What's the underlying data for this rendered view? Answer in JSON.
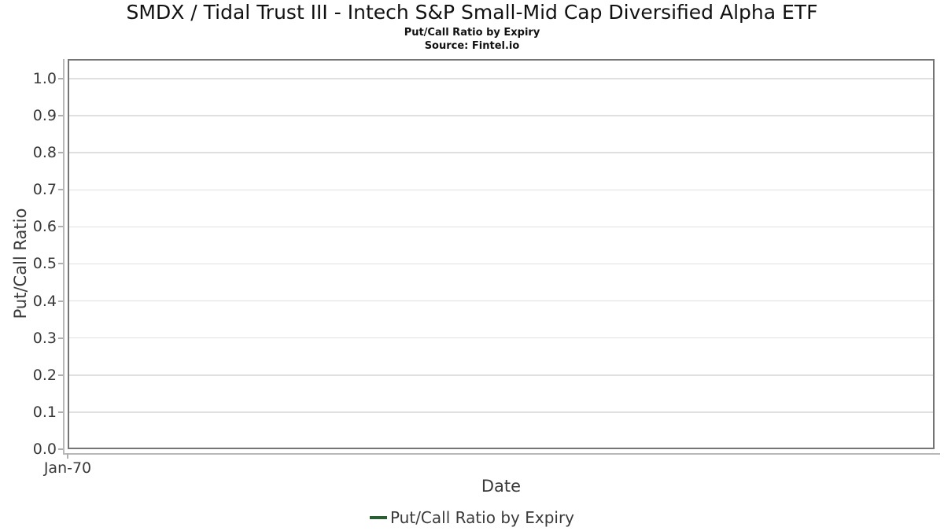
{
  "header": {
    "title": "SMDX / Tidal Trust III - Intech S&P Small-Mid Cap Diversified Alpha ETF",
    "subtitle": "Put/Call Ratio by Expiry",
    "source": "Source: Fintel.io"
  },
  "axes": {
    "x_label": "Date",
    "y_label": "Put/Call Ratio",
    "x_tick_labels": [
      "Jan-70"
    ],
    "y_tick_labels": [
      "0.0",
      "0.1",
      "0.2",
      "0.3",
      "0.4",
      "0.5",
      "0.6",
      "0.7",
      "0.8",
      "0.9",
      "1.0"
    ]
  },
  "legend": {
    "label": "Put/Call Ratio by Expiry"
  },
  "colors": {
    "series_green": "#2a5f34",
    "axis_text": "#3a3a3a",
    "plot_border": "#757575",
    "gridline": "#e0e0e0",
    "tick_mark": "#b0b0b0",
    "spine": "#b8b8b8",
    "title_text": "#111111",
    "background": "#ffffff"
  },
  "chart_data": {
    "type": "line",
    "title": "SMDX / Tidal Trust III - Intech S&P Small-Mid Cap Diversified Alpha ETF",
    "subtitle": "Put/Call Ratio by Expiry",
    "source": "Source: Fintel.io",
    "xlabel": "Date",
    "ylabel": "Put/Call Ratio",
    "x_ticks": [
      "Jan-70"
    ],
    "x_tick_positions": [
      0
    ],
    "y_ticks": [
      0.0,
      0.1,
      0.2,
      0.3,
      0.4,
      0.5,
      0.6,
      0.7,
      0.8,
      0.9,
      1.0
    ],
    "ylim": [
      0.0,
      1.053
    ],
    "grid": "horizontal-only",
    "legend_position": "bottom-center",
    "series": [
      {
        "name": "Put/Call Ratio by Expiry",
        "color": "#2a5f34",
        "x": [],
        "values": []
      }
    ]
  }
}
